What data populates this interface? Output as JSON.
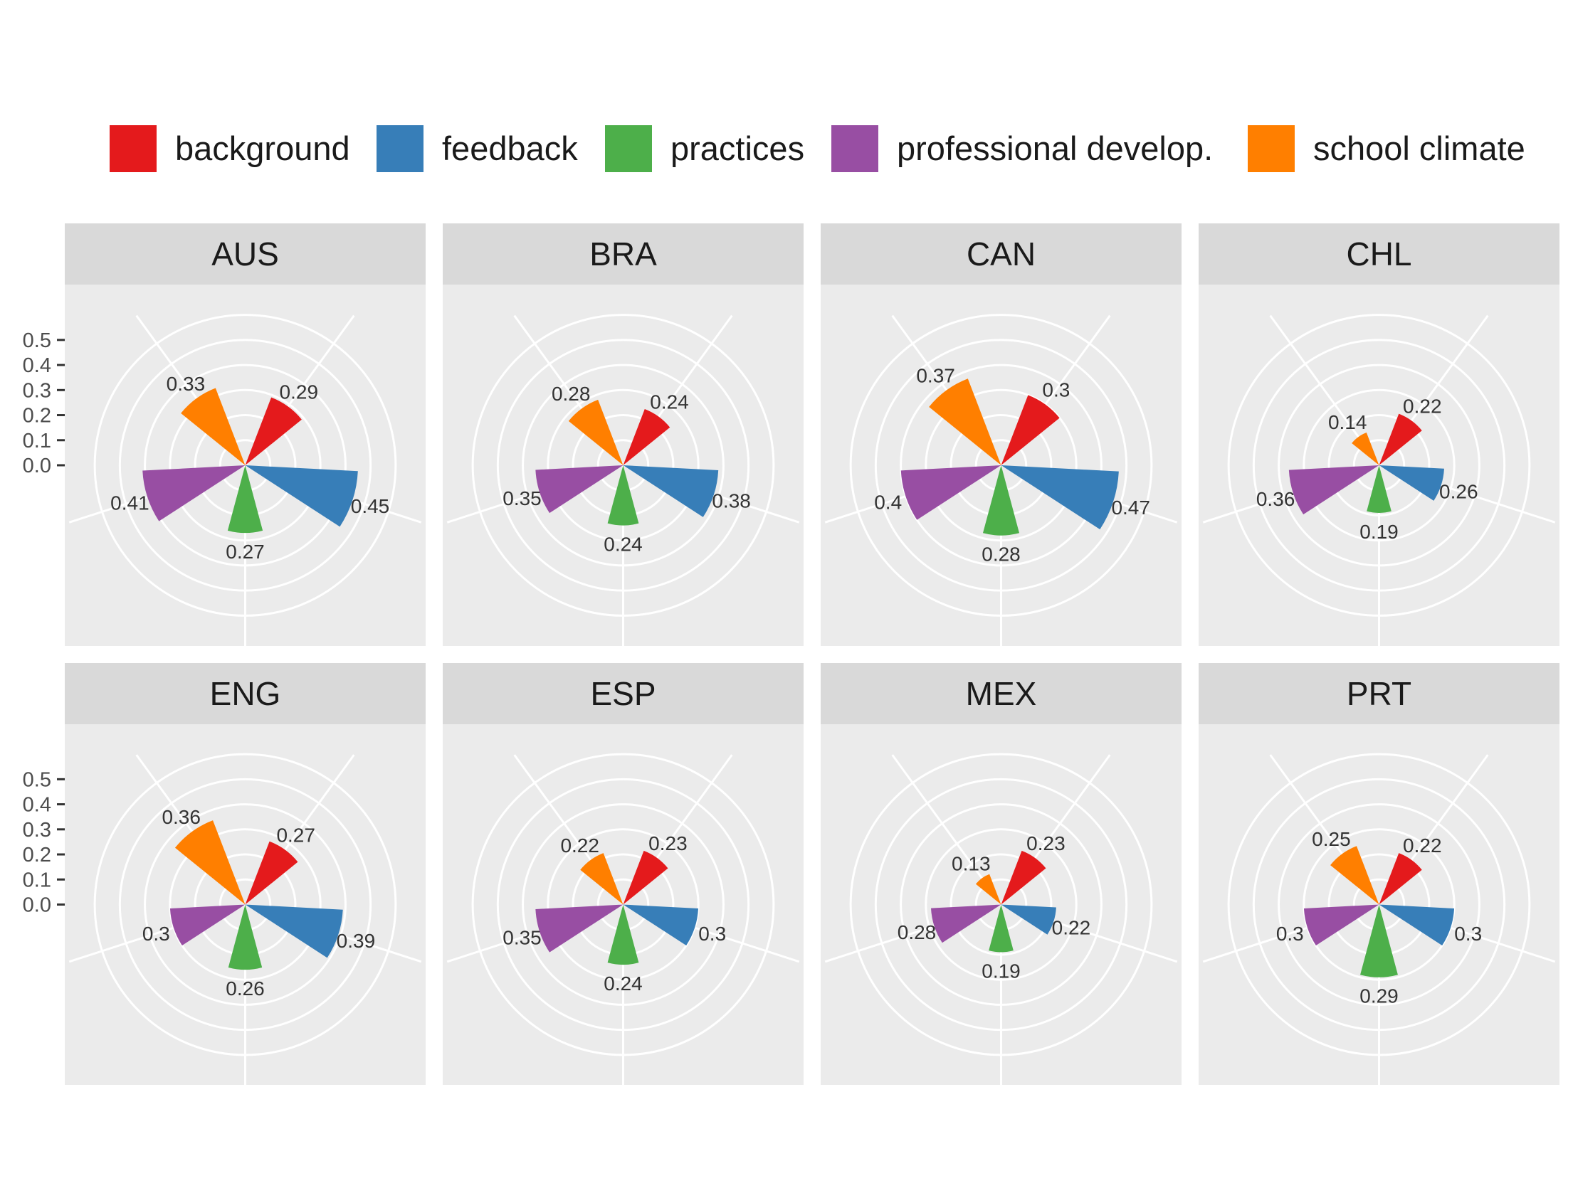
{
  "chart_data": {
    "type": "polar-bar",
    "legend": {
      "position": "top",
      "entries": [
        {
          "key": "background",
          "label": "background",
          "color": "#E41A1C"
        },
        {
          "key": "feedback",
          "label": "feedback",
          "color": "#377EB8"
        },
        {
          "key": "practices",
          "label": "practices",
          "color": "#4DAF4A"
        },
        {
          "key": "professional",
          "label": "professional develop.",
          "color": "#984EA3"
        },
        {
          "key": "climate",
          "label": "school climate",
          "color": "#FF7F00"
        }
      ]
    },
    "radial_axis": {
      "range": [
        0,
        0.65
      ],
      "ticks": [
        0.0,
        0.1,
        0.2,
        0.3,
        0.4,
        0.5
      ],
      "tick_labels": [
        "0.0",
        "0.1",
        "0.2",
        "0.3",
        "0.4",
        "0.5"
      ]
    },
    "grid": true,
    "facets": [
      {
        "name": "AUS",
        "values": {
          "background": 0.29,
          "feedback": 0.45,
          "practices": 0.27,
          "professional": 0.41,
          "climate": 0.33
        },
        "labels": {
          "background": "0.29",
          "feedback": "0.45",
          "practices": "0.27",
          "professional": "0.41",
          "climate": "0.33"
        }
      },
      {
        "name": "BRA",
        "values": {
          "background": 0.24,
          "feedback": 0.38,
          "practices": 0.24,
          "professional": 0.35,
          "climate": 0.28
        },
        "labels": {
          "background": "0.24",
          "feedback": "0.38",
          "practices": "0.24",
          "professional": "0.35",
          "climate": "0.28"
        }
      },
      {
        "name": "CAN",
        "values": {
          "background": 0.3,
          "feedback": 0.47,
          "practices": 0.28,
          "professional": 0.4,
          "climate": 0.37
        },
        "labels": {
          "background": "0.3",
          "feedback": "0.47",
          "practices": "0.28",
          "professional": "0.4",
          "climate": "0.37"
        }
      },
      {
        "name": "CHL",
        "values": {
          "background": 0.22,
          "feedback": 0.26,
          "practices": 0.19,
          "professional": 0.36,
          "climate": 0.14
        },
        "labels": {
          "background": "0.22",
          "feedback": "0.26",
          "practices": "0.19",
          "professional": "0.36",
          "climate": "0.14"
        }
      },
      {
        "name": "ENG",
        "values": {
          "background": 0.27,
          "feedback": 0.39,
          "practices": 0.26,
          "professional": 0.3,
          "climate": 0.36
        },
        "labels": {
          "background": "0.27",
          "feedback": "0.39",
          "practices": "0.26",
          "professional": "0.3",
          "climate": "0.36"
        }
      },
      {
        "name": "ESP",
        "values": {
          "background": 0.23,
          "feedback": 0.3,
          "practices": 0.24,
          "professional": 0.35,
          "climate": 0.22
        },
        "labels": {
          "background": "0.23",
          "feedback": "0.3",
          "practices": "0.24",
          "professional": "0.35",
          "climate": "0.22"
        }
      },
      {
        "name": "MEX",
        "values": {
          "background": 0.23,
          "feedback": 0.22,
          "practices": 0.19,
          "professional": 0.28,
          "climate": 0.13
        },
        "labels": {
          "background": "0.23",
          "feedback": "0.22",
          "practices": "0.19",
          "professional": "0.28",
          "climate": "0.13"
        }
      },
      {
        "name": "PRT",
        "values": {
          "background": 0.22,
          "feedback": 0.3,
          "practices": 0.29,
          "professional": 0.3,
          "climate": 0.25
        },
        "labels": {
          "background": "0.22",
          "feedback": "0.3",
          "practices": "0.29",
          "professional": "0.3",
          "climate": "0.25"
        }
      }
    ]
  }
}
